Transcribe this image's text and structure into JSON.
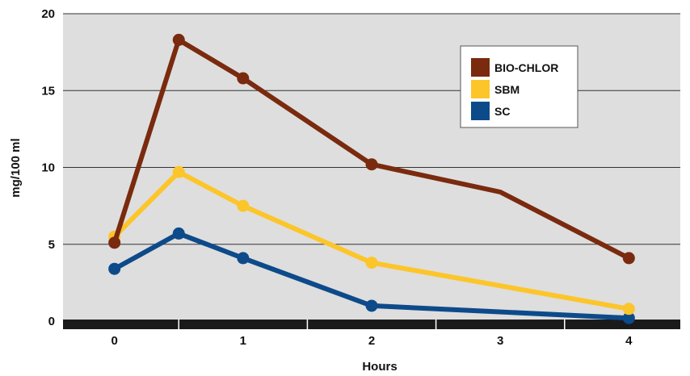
{
  "chart_data": {
    "type": "line",
    "xlabel": "Hours",
    "ylabel": "mg/100 ml",
    "xlim": [
      -0.4,
      4.4
    ],
    "ylim": [
      0,
      20
    ],
    "x_ticks": [
      0,
      1,
      2,
      3,
      4
    ],
    "y_ticks": [
      0,
      5,
      10,
      15,
      20
    ],
    "grid": true,
    "legend_position": "top-right",
    "colors": {
      "plot_background": "#dedede",
      "axis_bar": "#1a1a1a",
      "grid": "#333333"
    },
    "series": [
      {
        "name": "BIO-CHLOR",
        "color": "#7a2a0e",
        "markers": true,
        "points": [
          {
            "x": 0,
            "y": 5.1,
            "marker": true
          },
          {
            "x": 0.5,
            "y": 18.3,
            "marker": true
          },
          {
            "x": 1,
            "y": 15.8,
            "marker": true
          },
          {
            "x": 2,
            "y": 10.2,
            "marker": true
          },
          {
            "x": 3,
            "y": 8.4,
            "marker": false
          },
          {
            "x": 4,
            "y": 4.1,
            "marker": true
          }
        ]
      },
      {
        "name": "SBM",
        "color": "#fcc52a",
        "markers": true,
        "points": [
          {
            "x": 0,
            "y": 5.5,
            "marker": true
          },
          {
            "x": 0.5,
            "y": 9.7,
            "marker": true
          },
          {
            "x": 1,
            "y": 7.5,
            "marker": true
          },
          {
            "x": 2,
            "y": 3.8,
            "marker": true
          },
          {
            "x": 4,
            "y": 0.8,
            "marker": true
          }
        ]
      },
      {
        "name": "SC",
        "color": "#0d4a8a",
        "markers": true,
        "points": [
          {
            "x": 0,
            "y": 3.4,
            "marker": true
          },
          {
            "x": 0.5,
            "y": 5.7,
            "marker": true
          },
          {
            "x": 1,
            "y": 4.1,
            "marker": true
          },
          {
            "x": 2,
            "y": 1.0,
            "marker": true
          },
          {
            "x": 4,
            "y": 0.2,
            "marker": true
          }
        ]
      }
    ]
  }
}
